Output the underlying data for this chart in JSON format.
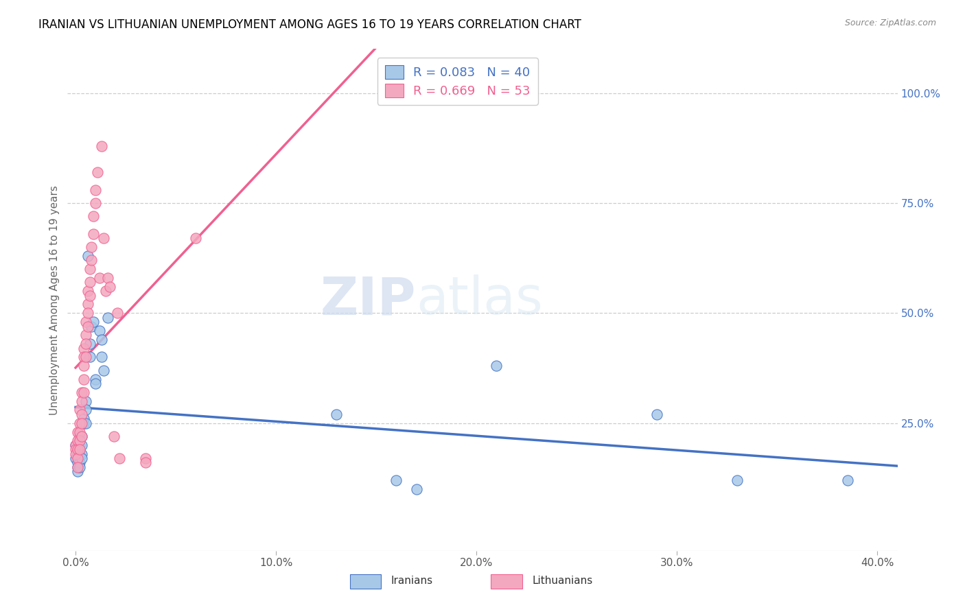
{
  "title": "IRANIAN VS LITHUANIAN UNEMPLOYMENT AMONG AGES 16 TO 19 YEARS CORRELATION CHART",
  "source": "Source: ZipAtlas.com",
  "ylabel": "Unemployment Among Ages 16 to 19 years",
  "xlim": [
    -0.004,
    0.41
  ],
  "ylim": [
    -0.04,
    1.1
  ],
  "iranians_R": 0.083,
  "iranians_N": 40,
  "lithuanians_R": 0.669,
  "lithuanians_N": 53,
  "iranian_color": "#A8C8E8",
  "lithuanian_color": "#F4A8C0",
  "iranian_line_color": "#4472C4",
  "lithuanian_line_color": "#F06090",
  "watermark_zip": "ZIP",
  "watermark_atlas": "atlas",
  "iranians_x": [
    0.0,
    0.0,
    0.001,
    0.001,
    0.001,
    0.001,
    0.001,
    0.002,
    0.002,
    0.002,
    0.002,
    0.002,
    0.003,
    0.003,
    0.003,
    0.003,
    0.004,
    0.004,
    0.005,
    0.005,
    0.005,
    0.006,
    0.007,
    0.007,
    0.008,
    0.009,
    0.01,
    0.01,
    0.012,
    0.013,
    0.013,
    0.014,
    0.016,
    0.13,
    0.16,
    0.17,
    0.21,
    0.29,
    0.33,
    0.385
  ],
  "iranians_y": [
    0.2,
    0.17,
    0.19,
    0.18,
    0.15,
    0.16,
    0.14,
    0.22,
    0.2,
    0.18,
    0.16,
    0.15,
    0.22,
    0.2,
    0.18,
    0.17,
    0.26,
    0.25,
    0.3,
    0.28,
    0.25,
    0.63,
    0.43,
    0.4,
    0.47,
    0.48,
    0.35,
    0.34,
    0.46,
    0.44,
    0.4,
    0.37,
    0.49,
    0.27,
    0.12,
    0.1,
    0.38,
    0.27,
    0.12,
    0.12
  ],
  "lithuanians_x": [
    0.0,
    0.0,
    0.0,
    0.001,
    0.001,
    0.001,
    0.001,
    0.001,
    0.002,
    0.002,
    0.002,
    0.002,
    0.002,
    0.003,
    0.003,
    0.003,
    0.003,
    0.003,
    0.004,
    0.004,
    0.004,
    0.004,
    0.004,
    0.005,
    0.005,
    0.005,
    0.005,
    0.006,
    0.006,
    0.006,
    0.006,
    0.007,
    0.007,
    0.007,
    0.008,
    0.008,
    0.009,
    0.009,
    0.01,
    0.01,
    0.011,
    0.012,
    0.013,
    0.014,
    0.015,
    0.016,
    0.017,
    0.019,
    0.021,
    0.022,
    0.035,
    0.035,
    0.06
  ],
  "lithuanians_y": [
    0.2,
    0.19,
    0.18,
    0.23,
    0.21,
    0.19,
    0.17,
    0.15,
    0.28,
    0.25,
    0.23,
    0.21,
    0.19,
    0.32,
    0.3,
    0.27,
    0.25,
    0.22,
    0.42,
    0.4,
    0.38,
    0.35,
    0.32,
    0.48,
    0.45,
    0.43,
    0.4,
    0.55,
    0.52,
    0.5,
    0.47,
    0.6,
    0.57,
    0.54,
    0.65,
    0.62,
    0.72,
    0.68,
    0.78,
    0.75,
    0.82,
    0.58,
    0.88,
    0.67,
    0.55,
    0.58,
    0.56,
    0.22,
    0.5,
    0.17,
    0.17,
    0.16,
    0.67
  ]
}
